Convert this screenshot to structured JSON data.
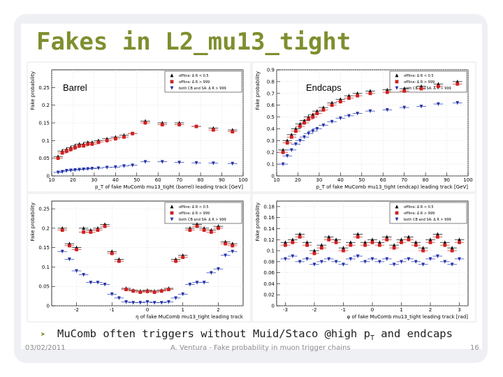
{
  "slide": {
    "title": "Fakes in L2_mu13_tight",
    "bullet_before": "MuComb often triggers without Muid/Staco @high p",
    "bullet_sub": "T",
    "bullet_after": " and endcaps",
    "footer_date": "03/02/2011",
    "footer_center": "A. Ventura - Fake probability in muon trigger chains",
    "footer_page": "16"
  },
  "colors": {
    "title": "#7e8f2f",
    "series_black": "#000000",
    "series_red": "#cc2222",
    "series_blue": "#2233aa"
  },
  "chart_data": [
    {
      "type": "scatter",
      "panel_label": "Barrel",
      "ylabel": "Fake probability",
      "xlabel": "p_T of fake MuComb mu13_tight (barrel) leading track [GeV]",
      "xlim": [
        10,
        100
      ],
      "ylim": [
        0,
        0.3
      ],
      "yticks": [
        0,
        0.05,
        0.1,
        0.15,
        0.2,
        0.25
      ],
      "xticks": [
        10,
        20,
        30,
        40,
        50,
        60,
        70,
        80,
        90,
        100
      ],
      "legend": [
        "offline: Δ R < 0.5",
        "offline: Δ R > 999",
        "both CB and SA: Δ R > 999"
      ],
      "series": [
        {
          "name": "offline: Δ R < 0.5",
          "marker": "triangle-up",
          "color": "#000000",
          "x": [
            13,
            15,
            17,
            19,
            21,
            23,
            25,
            27,
            29,
            32,
            36,
            40,
            44,
            48,
            54,
            62,
            70,
            78,
            86,
            95
          ],
          "y": [
            0.055,
            0.07,
            0.075,
            0.08,
            0.085,
            0.09,
            0.09,
            0.095,
            0.095,
            0.1,
            0.105,
            0.11,
            0.115,
            0.12,
            0.155,
            0.15,
            0.15,
            0.14,
            0.135,
            0.13
          ]
        },
        {
          "name": "offline: Δ R > 999",
          "marker": "square",
          "color": "#cc2222",
          "x": [
            13,
            15,
            17,
            19,
            21,
            23,
            25,
            27,
            29,
            32,
            36,
            40,
            44,
            48,
            54,
            62,
            70,
            78,
            86,
            95
          ],
          "y": [
            0.05,
            0.065,
            0.07,
            0.075,
            0.08,
            0.085,
            0.085,
            0.09,
            0.09,
            0.095,
            0.1,
            0.105,
            0.11,
            0.12,
            0.15,
            0.145,
            0.145,
            0.14,
            0.13,
            0.125
          ]
        },
        {
          "name": "both CB and SA: Δ R > 999",
          "marker": "triangle-down",
          "color": "#2233aa",
          "x": [
            13,
            15,
            17,
            19,
            21,
            23,
            25,
            27,
            29,
            32,
            36,
            40,
            44,
            48,
            54,
            62,
            70,
            78,
            86,
            95
          ],
          "y": [
            0.01,
            0.012,
            0.015,
            0.016,
            0.017,
            0.018,
            0.019,
            0.02,
            0.021,
            0.022,
            0.024,
            0.025,
            0.028,
            0.03,
            0.04,
            0.04,
            0.038,
            0.037,
            0.036,
            0.035
          ]
        }
      ]
    },
    {
      "type": "scatter",
      "panel_label": "Endcaps",
      "ylabel": "Fake probability",
      "xlabel": "p_T of fake MuComb mu13_tight (endcap) leading track [GeV]",
      "xlim": [
        10,
        100
      ],
      "ylim": [
        0,
        0.9
      ],
      "yticks": [
        0,
        0.1,
        0.2,
        0.3,
        0.4,
        0.5,
        0.6,
        0.7,
        0.8,
        0.9
      ],
      "xticks": [
        10,
        20,
        30,
        40,
        50,
        60,
        70,
        80,
        90,
        100
      ],
      "legend": [
        "offline: Δ R < 0.5",
        "offline: Δ R > 999",
        "both CB and SA: Δ R > 999"
      ],
      "series": [
        {
          "name": "offline: Δ R < 0.5",
          "marker": "triangle-up",
          "color": "#000000",
          "x": [
            13,
            15,
            17,
            19,
            21,
            23,
            25,
            27,
            29,
            32,
            36,
            40,
            44,
            48,
            54,
            62,
            70,
            78,
            86,
            95
          ],
          "y": [
            0.22,
            0.3,
            0.35,
            0.4,
            0.44,
            0.47,
            0.5,
            0.52,
            0.55,
            0.58,
            0.62,
            0.65,
            0.68,
            0.7,
            0.72,
            0.73,
            0.74,
            0.76,
            0.78,
            0.8
          ]
        },
        {
          "name": "offline: Δ R > 999",
          "marker": "square",
          "color": "#cc2222",
          "x": [
            13,
            15,
            17,
            19,
            21,
            23,
            25,
            27,
            29,
            32,
            36,
            40,
            44,
            48,
            54,
            62,
            70,
            78,
            86,
            95
          ],
          "y": [
            0.2,
            0.28,
            0.33,
            0.38,
            0.42,
            0.45,
            0.48,
            0.5,
            0.53,
            0.56,
            0.6,
            0.63,
            0.66,
            0.68,
            0.7,
            0.71,
            0.72,
            0.74,
            0.76,
            0.78
          ]
        },
        {
          "name": "both CB and SA: Δ R > 999",
          "marker": "triangle-down",
          "color": "#2233aa",
          "x": [
            13,
            15,
            17,
            19,
            21,
            23,
            25,
            27,
            29,
            32,
            36,
            40,
            44,
            48,
            54,
            62,
            70,
            78,
            86,
            95
          ],
          "y": [
            0.1,
            0.17,
            0.22,
            0.27,
            0.3,
            0.33,
            0.36,
            0.38,
            0.4,
            0.43,
            0.46,
            0.49,
            0.51,
            0.53,
            0.55,
            0.56,
            0.58,
            0.59,
            0.61,
            0.62
          ]
        }
      ]
    },
    {
      "type": "scatter",
      "panel_label": "",
      "ylabel": "Fake probability",
      "xlabel": "η of fake MuComb mu13_tight leading track",
      "xlim": [
        -2.7,
        2.7
      ],
      "ylim": [
        0,
        0.27
      ],
      "yticks": [
        0,
        0.05,
        0.1,
        0.15,
        0.2,
        0.25
      ],
      "xticks": [
        -2,
        -1,
        0,
        1,
        2
      ],
      "legend": [
        "offline: Δ R < 0.5",
        "offline: Δ R > 999",
        "both CB and SA: Δ R > 999"
      ],
      "series": [
        {
          "name": "offline: Δ R < 0.5",
          "marker": "triangle-up",
          "color": "#000000",
          "x": [
            -2.4,
            -2.2,
            -2.0,
            -1.8,
            -1.6,
            -1.4,
            -1.2,
            -1.0,
            -0.8,
            -0.6,
            -0.4,
            -0.2,
            0.0,
            0.2,
            0.4,
            0.6,
            0.8,
            1.0,
            1.2,
            1.4,
            1.6,
            1.8,
            2.0,
            2.2,
            2.4
          ],
          "y": [
            0.2,
            0.16,
            0.15,
            0.2,
            0.195,
            0.2,
            0.21,
            0.14,
            0.12,
            0.045,
            0.04,
            0.038,
            0.04,
            0.038,
            0.04,
            0.045,
            0.12,
            0.13,
            0.2,
            0.21,
            0.2,
            0.195,
            0.205,
            0.165,
            0.16
          ]
        },
        {
          "name": "offline: Δ R > 999",
          "marker": "square",
          "color": "#cc2222",
          "x": [
            -2.4,
            -2.2,
            -2.0,
            -1.8,
            -1.6,
            -1.4,
            -1.2,
            -1.0,
            -0.8,
            -0.6,
            -0.4,
            -0.2,
            0.0,
            0.2,
            0.4,
            0.6,
            0.8,
            1.0,
            1.2,
            1.4,
            1.6,
            1.8,
            2.0,
            2.2,
            2.4
          ],
          "y": [
            0.195,
            0.155,
            0.145,
            0.19,
            0.19,
            0.195,
            0.205,
            0.135,
            0.115,
            0.042,
            0.038,
            0.035,
            0.037,
            0.035,
            0.038,
            0.042,
            0.115,
            0.125,
            0.195,
            0.205,
            0.195,
            0.19,
            0.2,
            0.16,
            0.155
          ]
        },
        {
          "name": "both CB and SA: Δ R > 999",
          "marker": "triangle-down",
          "color": "#2233aa",
          "x": [
            -2.4,
            -2.2,
            -2.0,
            -1.8,
            -1.6,
            -1.4,
            -1.2,
            -1.0,
            -0.8,
            -0.6,
            -0.4,
            -0.2,
            0.0,
            0.2,
            0.4,
            0.6,
            0.8,
            1.0,
            1.2,
            1.4,
            1.6,
            1.8,
            2.0,
            2.2,
            2.4
          ],
          "y": [
            0.14,
            0.12,
            0.09,
            0.08,
            0.06,
            0.06,
            0.055,
            0.03,
            0.02,
            0.01,
            0.008,
            0.008,
            0.01,
            0.008,
            0.008,
            0.01,
            0.02,
            0.03,
            0.055,
            0.06,
            0.06,
            0.085,
            0.095,
            0.13,
            0.14
          ]
        }
      ]
    },
    {
      "type": "scatter",
      "panel_label": "",
      "ylabel": "Fake probability",
      "xlabel": "φ of fake MuComb mu13_tight leading track [rad]",
      "xlim": [
        -3.3,
        3.3
      ],
      "ylim": [
        0,
        0.19
      ],
      "yticks": [
        0,
        0.02,
        0.04,
        0.06,
        0.08,
        0.1,
        0.12,
        0.14,
        0.16,
        0.18
      ],
      "xticks": [
        -3,
        -2,
        -1,
        0,
        1,
        2,
        3
      ],
      "legend": [
        "offline: Δ R < 0.5",
        "offline: Δ R > 999",
        "both CB and SA: Δ R > 999"
      ],
      "series": [
        {
          "name": "offline: Δ R < 0.5",
          "marker": "triangle-up",
          "color": "#000000",
          "x": [
            -3.0,
            -2.75,
            -2.5,
            -2.25,
            -2.0,
            -1.75,
            -1.5,
            -1.25,
            -1.0,
            -0.75,
            -0.5,
            -0.25,
            0.0,
            0.25,
            0.5,
            0.75,
            1.0,
            1.25,
            1.5,
            1.75,
            2.0,
            2.25,
            2.5,
            2.75,
            3.0
          ],
          "y": [
            0.115,
            0.12,
            0.13,
            0.115,
            0.1,
            0.11,
            0.125,
            0.12,
            0.105,
            0.115,
            0.13,
            0.115,
            0.12,
            0.115,
            0.125,
            0.11,
            0.12,
            0.125,
            0.115,
            0.105,
            0.12,
            0.13,
            0.115,
            0.105,
            0.12
          ]
        },
        {
          "name": "offline: Δ R > 999",
          "marker": "square",
          "color": "#cc2222",
          "x": [
            -3.0,
            -2.75,
            -2.5,
            -2.25,
            -2.0,
            -1.75,
            -1.5,
            -1.25,
            -1.0,
            -0.75,
            -0.5,
            -0.25,
            0.0,
            0.25,
            0.5,
            0.75,
            1.0,
            1.25,
            1.5,
            1.75,
            2.0,
            2.25,
            2.5,
            2.75,
            3.0
          ],
          "y": [
            0.11,
            0.115,
            0.125,
            0.11,
            0.095,
            0.105,
            0.12,
            0.115,
            0.1,
            0.11,
            0.125,
            0.11,
            0.115,
            0.11,
            0.12,
            0.105,
            0.115,
            0.12,
            0.11,
            0.1,
            0.115,
            0.125,
            0.11,
            0.1,
            0.115
          ]
        },
        {
          "name": "both CB and SA: Δ R > 999",
          "marker": "triangle-down",
          "color": "#2233aa",
          "x": [
            -3.0,
            -2.75,
            -2.5,
            -2.25,
            -2.0,
            -1.75,
            -1.5,
            -1.25,
            -1.0,
            -0.75,
            -0.5,
            -0.25,
            0.0,
            0.25,
            0.5,
            0.75,
            1.0,
            1.25,
            1.5,
            1.75,
            2.0,
            2.25,
            2.5,
            2.75,
            3.0
          ],
          "y": [
            0.085,
            0.09,
            0.08,
            0.085,
            0.075,
            0.08,
            0.085,
            0.08,
            0.075,
            0.085,
            0.09,
            0.08,
            0.085,
            0.08,
            0.085,
            0.075,
            0.08,
            0.085,
            0.08,
            0.075,
            0.085,
            0.09,
            0.08,
            0.075,
            0.085
          ]
        }
      ]
    }
  ]
}
